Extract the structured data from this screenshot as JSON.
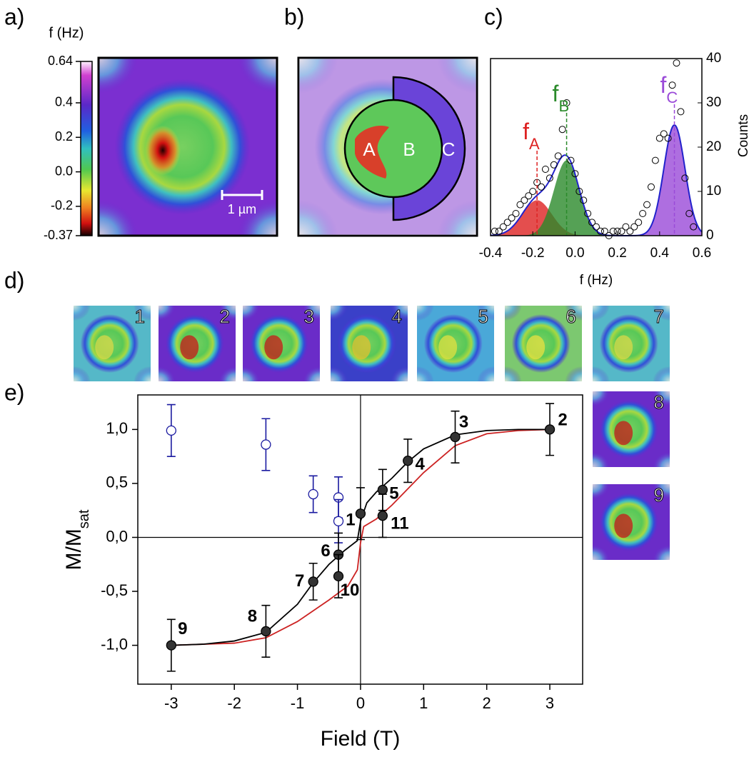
{
  "chart_data": [
    {
      "type": "colormap",
      "panel": "a)",
      "colorbar_label": "f (Hz)",
      "zlim": [
        -0.37,
        0.64
      ],
      "zticks": [
        0.64,
        0.4,
        0.2,
        {
          "value": 0,
          "label": "0.0"
        },
        -0.2,
        -0.37
      ],
      "scale_bar": "1 µm"
    },
    {
      "type": "map",
      "panel": "b)",
      "regions": [
        "A",
        "B",
        "C"
      ],
      "colors": [
        "#d8402a",
        "#5ec85a",
        "#6a44d8"
      ]
    },
    {
      "type": "scatter",
      "panel": "c)",
      "xlabel": "f (Hz)",
      "ylabel": "Counts",
      "x": [
        -0.38,
        -0.36,
        -0.34,
        -0.32,
        -0.3,
        -0.28,
        -0.26,
        -0.24,
        -0.22,
        -0.2,
        -0.18,
        -0.16,
        -0.14,
        -0.12,
        -0.1,
        -0.08,
        -0.06,
        -0.04,
        -0.02,
        0,
        0.02,
        0.04,
        0.06,
        0.08,
        0.1,
        0.12,
        0.14,
        0.16,
        0.18,
        0.2,
        0.22,
        0.24,
        0.26,
        0.28,
        0.3,
        0.32,
        0.34,
        0.36,
        0.38,
        0.4,
        0.42,
        0.44,
        0.46,
        0.48,
        0.5,
        0.52,
        0.54,
        0.56
      ],
      "values": [
        1,
        1,
        2,
        3,
        4,
        5,
        7,
        8,
        9,
        10,
        12,
        11,
        15,
        13,
        16,
        18,
        24,
        30,
        17,
        14,
        10,
        8,
        5,
        3,
        2,
        1,
        1,
        0,
        1,
        1,
        1,
        2,
        1,
        2,
        3,
        5,
        7,
        11,
        17,
        22,
        23,
        22,
        34,
        39,
        28,
        13,
        5,
        2
      ],
      "xlim": [
        -0.4,
        0.6
      ],
      "xticks": [
        -0.4,
        -0.2,
        {
          "value": 0,
          "label": "0.0"
        },
        0.2,
        0.4,
        0.6
      ],
      "ylim": [
        0,
        40
      ],
      "yticks": [
        0,
        10,
        20,
        30,
        40
      ],
      "fit_color": "#2222cc",
      "components": [
        {
          "label": "f",
          "subscript": "A",
          "center": -0.18,
          "amplitude": 8,
          "width": 0.07,
          "color": "#dd2222"
        },
        {
          "label": "f",
          "subscript": "B",
          "center": -0.04,
          "amplitude": 17,
          "width": 0.06,
          "color": "#2a8a2a"
        },
        {
          "label": "f",
          "subscript": "C",
          "center": 0.47,
          "amplitude": 25,
          "width": 0.05,
          "color": "#9a4ad8"
        }
      ]
    },
    {
      "type": "thumbnails",
      "panel": "d)",
      "labels": [
        "1",
        "2",
        "3",
        "4",
        "5",
        "6",
        "7",
        "8",
        "9"
      ],
      "colors": [
        "#55b8c8",
        "#6a2cc8",
        "#6a2cc8",
        "#3a40c8",
        "#4aa8d8",
        "#7cc870",
        "#55b8c8",
        "#6a2cc8",
        "#6a2cc8"
      ],
      "spot_colors": [
        "#d8d848",
        "#c81818",
        "#c81818",
        "#e0c030",
        "#e0e040",
        "#e8e040",
        "#d8d848",
        "#c81818",
        "#c81818"
      ]
    },
    {
      "type": "errorbar",
      "panel": "e)",
      "xlabel": "Field (T)",
      "ylabel": "M/M",
      "ylabel_subscript": "sat",
      "xlim": [
        -3.53,
        3.52
      ],
      "xticks": [
        -3,
        -2,
        -1,
        0,
        1,
        2,
        3
      ],
      "ylim": [
        -1.36,
        1.32
      ],
      "yticks": [
        {
          "value": 1,
          "label": "1,0"
        },
        {
          "value": 0.5,
          "label": "0,5"
        },
        {
          "value": 0,
          "label": "0,0"
        },
        {
          "value": -0.5,
          "label": "-0,5"
        },
        {
          "value": -1,
          "label": "-1,0"
        }
      ],
      "series": [
        {
          "kind": "line",
          "color": "#cc2222",
          "x": [
            -3,
            -2,
            -1.5,
            -1,
            -0.5,
            -0.2,
            -0.05,
            0,
            0.05,
            0.25,
            0.5,
            1,
            1.5,
            2,
            2.5,
            3
          ],
          "values": [
            -1,
            -0.98,
            -0.93,
            -0.78,
            -0.58,
            -0.45,
            -0.3,
            -0.05,
            0.1,
            0.17,
            0.3,
            0.6,
            0.85,
            0.96,
            0.99,
            1
          ]
        },
        {
          "kind": "line",
          "color": "#000000",
          "x": [
            -3,
            -2.5,
            -2,
            -1.5,
            -1,
            -0.75,
            -0.5,
            -0.25,
            -0.05,
            0,
            0.1,
            0.25,
            0.5,
            0.75,
            1,
            1.5,
            2,
            2.5,
            3
          ],
          "values": [
            -1,
            -0.99,
            -0.96,
            -0.88,
            -0.62,
            -0.42,
            -0.25,
            -0.12,
            -0.03,
            0.15,
            0.32,
            0.42,
            0.55,
            0.7,
            0.82,
            0.95,
            0.99,
            1,
            1
          ]
        },
        {
          "kind": "points",
          "marker": "open",
          "color": "#1a1aa0",
          "x": [
            -3,
            -1.5,
            -0.75,
            -0.35,
            -0.35
          ],
          "values": [
            0.99,
            0.86,
            0.4,
            0.37,
            0.15
          ],
          "errors": [
            0.24,
            0.24,
            0.17,
            0.19,
            0.2
          ]
        },
        {
          "kind": "points",
          "marker": "filled",
          "color": "#000000",
          "x": [
            0,
            3,
            1.5,
            0.75,
            0.35,
            -0.35,
            -0.75,
            -1.5,
            -3,
            -0.35,
            0.35
          ],
          "values": [
            0.22,
            1,
            0.93,
            0.71,
            0.44,
            -0.16,
            -0.41,
            -0.87,
            -1,
            -0.36,
            0.2
          ],
          "errors": [
            0.24,
            0.24,
            0.24,
            0.2,
            0.19,
            0.2,
            0.17,
            0.24,
            0.24,
            0.2,
            0.2
          ],
          "point_labels": [
            "1",
            "2",
            "3",
            "4",
            "5",
            "6",
            "7",
            "8",
            "9",
            "10",
            "11"
          ]
        }
      ]
    }
  ]
}
